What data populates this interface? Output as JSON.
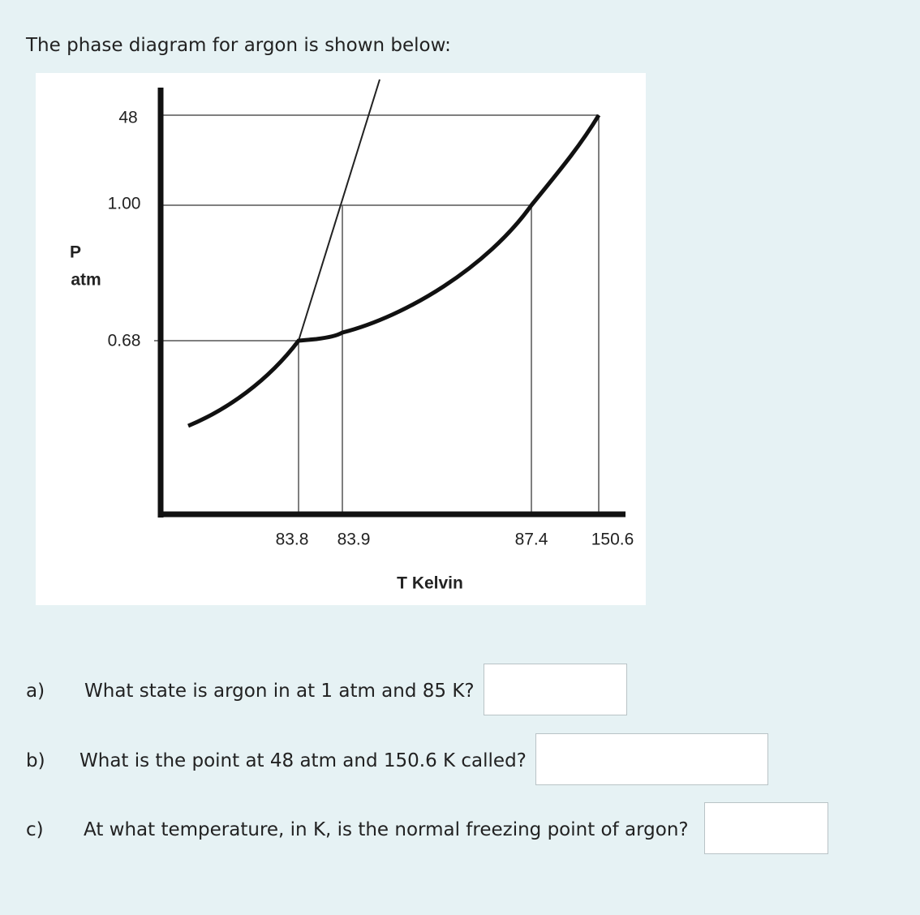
{
  "intro": "The phase diagram for argon is shown below:",
  "diagram": {
    "y_labels": [
      "48",
      "1.00",
      "0.68"
    ],
    "y_title": [
      "P",
      "atm"
    ],
    "x_labels": [
      "83.8",
      "83.9",
      "87.4",
      "150.6"
    ],
    "x_title": "T Kelvin"
  },
  "questions": [
    {
      "label": "a)",
      "text": "What state is argon in at 1 atm and 85 K?"
    },
    {
      "label": "b)",
      "text": "What is the point at 48 atm and 150.6 K called?"
    },
    {
      "label": "c)",
      "text": "At what temperature, in K, is the normal freezing point of argon?"
    }
  ]
}
